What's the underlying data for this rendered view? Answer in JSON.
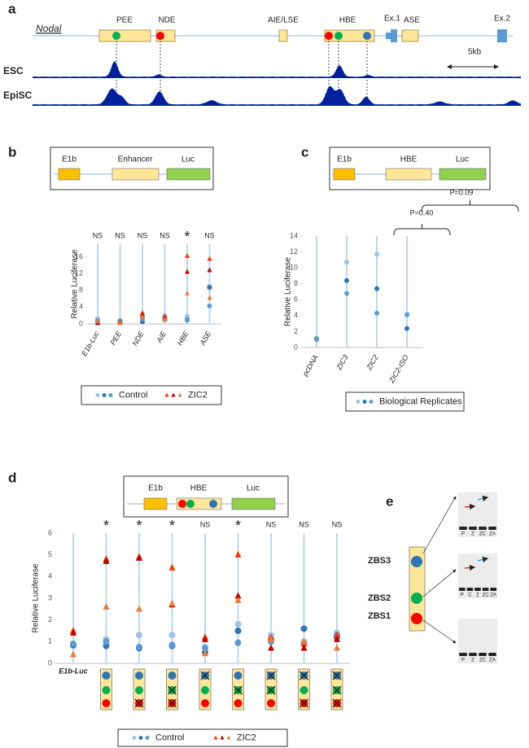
{
  "panel_labels": [
    "a",
    "b",
    "c",
    "d",
    "e"
  ],
  "panel_a": {
    "gene": "Nodal",
    "elements": [
      "PEE",
      "NDE",
      "AIE/LSE",
      "HBE",
      "Ex.1",
      "ASE",
      "Ex.2"
    ],
    "scale": "5kb",
    "tracks": [
      "ESC",
      "EpiSC"
    ]
  },
  "constructs": {
    "b": [
      "E1b",
      "Enhancer",
      "Luc"
    ],
    "c": [
      "E1b",
      "HBE",
      "Luc"
    ],
    "d": [
      "E1b",
      "HBE",
      "Luc"
    ]
  },
  "panel_e": {
    "sites": [
      "ZBS3",
      "ZBS2",
      "ZBS1"
    ],
    "lanes": [
      [
        "P",
        "Z",
        "ZC",
        "ZA"
      ],
      [
        "P",
        "C",
        "Z",
        "ZC",
        "ZA"
      ],
      [
        "P",
        "Z",
        "ZC",
        "ZA"
      ]
    ]
  },
  "chart_data": [
    {
      "type": "dot",
      "ylabel": "Relative Luciferase",
      "categories": [
        "E1b-Luc",
        "PEE",
        "NDE",
        "AIE",
        "HBE",
        "ASE"
      ],
      "annotations": [
        "NS",
        "NS",
        "NS",
        "NS",
        "*",
        "NS"
      ],
      "ylim": [
        0,
        19
      ],
      "yticks": [
        0,
        4,
        8,
        12,
        16
      ],
      "series": [
        {
          "name": "Control",
          "marker": "circle",
          "colors": [
            "#9dc3e6",
            "#2e75b6",
            "#5b9bd5"
          ],
          "values": [
            [
              1.3,
              0.5,
              0.8
            ],
            [
              0.9,
              0.3,
              0.6
            ],
            [
              1.7,
              0.5,
              1.2
            ],
            [
              2.0,
              1.5,
              1.0
            ],
            [
              1.8,
              1.0,
              0.9
            ],
            [
              8.5,
              8.8,
              4.3
            ]
          ]
        },
        {
          "name": "ZIC2",
          "marker": "triangle",
          "colors": [
            "#ff3300",
            "#c00000",
            "#ed7d31"
          ],
          "values": [
            [
              0.4,
              0.2,
              0.6
            ],
            [
              0.5,
              0.3,
              0.2
            ],
            [
              2.6,
              2.2,
              1.7
            ],
            [
              1.8,
              1.2,
              1.1
            ],
            [
              16.2,
              12.4,
              7.3
            ],
            [
              15.5,
              12.8,
              6.2
            ]
          ]
        }
      ]
    },
    {
      "type": "dot",
      "ylabel": "Relative Luciferase",
      "categories": [
        "pcDNA",
        "ZIC3",
        "ZIC2",
        "ZIC2-ISO"
      ],
      "ylim": [
        0,
        14
      ],
      "yticks": [
        0,
        2,
        4,
        6,
        8,
        10,
        12,
        14
      ],
      "comparisons": [
        {
          "label": "P=0.40"
        },
        {
          "label": "P=0.09"
        }
      ],
      "series": [
        {
          "name": "Biological Replicates",
          "marker": "circle",
          "colors": [
            "#9dc3e6",
            "#2e75b6",
            "#5b9bd5"
          ],
          "values": [
            [
              1.0,
              1.1,
              1.0
            ],
            [
              10.7,
              8.4,
              6.8
            ],
            [
              11.7,
              7.4,
              4.3
            ],
            [
              4.2,
              2.4,
              4.1
            ]
          ]
        }
      ]
    },
    {
      "type": "dot",
      "ylabel": "Relative Luciferase",
      "categories": [
        "E1b-Luc",
        null,
        null,
        null,
        null,
        null,
        null,
        null,
        null
      ],
      "annotations": [
        null,
        "*",
        "*",
        "*",
        "NS",
        "*",
        "NS",
        "NS",
        "NS"
      ],
      "ylim": [
        0,
        6
      ],
      "yticks": [
        0,
        1,
        2,
        3,
        4,
        5,
        6
      ],
      "mutant_sites": [
        null,
        [
          false,
          false,
          false
        ],
        [
          false,
          false,
          true
        ],
        [
          false,
          true,
          true
        ],
        [
          true,
          false,
          false
        ],
        [
          false,
          true,
          false
        ],
        [
          true,
          true,
          false
        ],
        [
          true,
          false,
          true
        ],
        [
          true,
          true,
          true
        ]
      ],
      "series": [
        {
          "name": "Control",
          "marker": "circle",
          "colors": [
            "#9dc3e6",
            "#2e75b6",
            "#5b9bd5"
          ],
          "values": [
            [
              0.8,
              0.85,
              0.9
            ],
            [
              1.1,
              0.8,
              1.0
            ],
            [
              1.3,
              0.7,
              0.75
            ],
            [
              1.3,
              0.8,
              0.85
            ],
            [
              0.75,
              0.5,
              0.7
            ],
            [
              1.8,
              1.5,
              0.95
            ],
            [
              1.3,
              1.1,
              1.0
            ],
            [
              1.0,
              1.6,
              0.9
            ],
            [
              1.4,
              1.2,
              1.3
            ]
          ]
        },
        {
          "name": "ZIC2",
          "marker": "triangle",
          "colors": [
            "#ff3300",
            "#c00000",
            "#ed7d31"
          ],
          "values": [
            [
              1.5,
              1.4,
              0.4
            ],
            [
              4.8,
              4.7,
              2.6
            ],
            [
              4.9,
              4.85,
              2.5
            ],
            [
              4.4,
              2.7,
              2.75
            ],
            [
              1.2,
              1.1,
              0.45
            ],
            [
              5.0,
              3.1,
              2.9
            ],
            [
              1.2,
              0.7,
              1.1
            ],
            [
              0.9,
              0.7,
              1.0
            ],
            [
              1.3,
              1.1,
              0.7
            ]
          ]
        }
      ]
    }
  ]
}
